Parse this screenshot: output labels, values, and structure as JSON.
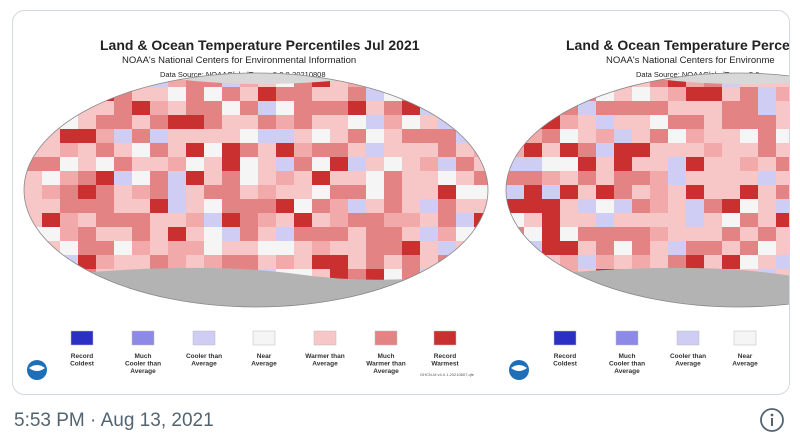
{
  "images": [
    {
      "title": "Land & Ocean Temperature Percentiles Jul 2021",
      "subtitle": "NOAA's National Centers for Environmental Information",
      "source": "Data Source: NOAAGlobalTemp v5.0.0-20210808",
      "legend": [
        {
          "lines": [
            "Record",
            "Coldest"
          ],
          "color": "#2b2fc4"
        },
        {
          "lines": [
            "Much",
            "Cooler than",
            "Average"
          ],
          "color": "#8c8ae6"
        },
        {
          "lines": [
            "Cooler than",
            "Average"
          ],
          "color": "#cfcdf4"
        },
        {
          "lines": [
            "Near",
            "Average"
          ],
          "color": "#f5f5f5"
        },
        {
          "lines": [
            "Warmer than",
            "Average"
          ],
          "color": "#f7c6c6"
        },
        {
          "lines": [
            "Much",
            "Warmer than",
            "Average"
          ],
          "color": "#e48383"
        },
        {
          "lines": [
            "Record",
            "Warmest"
          ],
          "color": "#c9302f"
        }
      ],
      "footnote": "GHCN-M v4.0.1.20210807.qfe"
    },
    {
      "title": "Land & Ocean Temperature Perce",
      "subtitle": "NOAA's National Centers for Environme",
      "source": "Data Source: NOAAGlobalTemp v5.0",
      "legend": [
        {
          "lines": [
            "Record",
            "Coldest"
          ],
          "color": "#2b2fc4"
        },
        {
          "lines": [
            "Much",
            "Cooler than",
            "Average"
          ],
          "color": "#8c8ae6"
        },
        {
          "lines": [
            "Cooler than",
            "Average"
          ],
          "color": "#cfcdf4"
        },
        {
          "lines": [
            "Near",
            "Average"
          ],
          "color": "#f5f5f5"
        }
      ]
    }
  ],
  "timestamp": "5:53 PM · Aug 13, 2021"
}
